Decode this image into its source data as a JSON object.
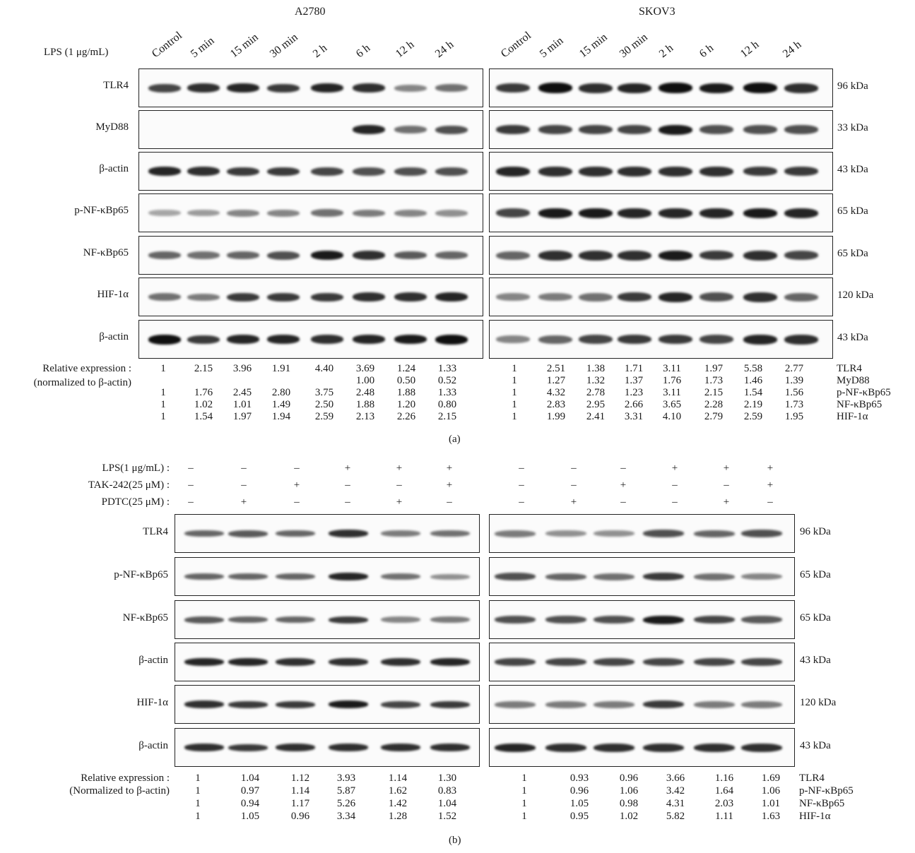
{
  "panel_a": {
    "cell_lines": [
      "A2780",
      "SKOV3"
    ],
    "lps_label": "LPS (1 μg/mL)",
    "timepoints": [
      "Control",
      "5 min",
      "15 min",
      "30 min",
      "2 h",
      "6 h",
      "12 h",
      "24 h"
    ],
    "rows": [
      {
        "name": "TLR4",
        "kda": "96 kDa"
      },
      {
        "name": "MyD88",
        "kda": "33 kDa"
      },
      {
        "name": "β-actin",
        "kda": "43 kDa"
      },
      {
        "name": "p-NF-κBp65",
        "kda": "65 kDa"
      },
      {
        "name": "NF-κBp65",
        "kda": "65 kDa"
      },
      {
        "name": "HIF-1α",
        "kda": "120 kDa"
      },
      {
        "name": "β-actin",
        "kda": "43 kDa"
      }
    ],
    "rel_label_1": "Relative expression :",
    "rel_label_2": "(normalized to β-actin)",
    "a2780_values": [
      [
        "1",
        "2.15",
        "3.96",
        "1.91",
        "4.40",
        "3.69",
        "1.24",
        "1.33"
      ],
      [
        "",
        "",
        "",
        "",
        "",
        "1.00",
        "0.50",
        "0.52"
      ],
      [
        "1",
        "1.76",
        "2.45",
        "2.80",
        "3.75",
        "2.48",
        "1.88",
        "1.33"
      ],
      [
        "1",
        "1.02",
        "1.01",
        "1.49",
        "2.50",
        "1.88",
        "1.20",
        "0.80"
      ],
      [
        "1",
        "1.54",
        "1.97",
        "1.94",
        "2.59",
        "2.13",
        "2.26",
        "2.15"
      ]
    ],
    "skov3_values": [
      [
        "1",
        "2.51",
        "1.38",
        "1.71",
        "3.11",
        "1.97",
        "5.58",
        "2.77"
      ],
      [
        "1",
        "1.27",
        "1.32",
        "1.37",
        "1.76",
        "1.73",
        "1.46",
        "1.39"
      ],
      [
        "1",
        "4.32",
        "2.78",
        "1.23",
        "3.11",
        "2.15",
        "1.54",
        "1.56"
      ],
      [
        "1",
        "2.83",
        "2.95",
        "2.66",
        "3.65",
        "2.28",
        "2.19",
        "1.73"
      ],
      [
        "1",
        "1.99",
        "2.41",
        "3.31",
        "4.10",
        "2.79",
        "2.59",
        "1.95"
      ]
    ],
    "value_row_names": [
      "TLR4",
      "MyD88",
      "p-NF-κBp65",
      "NF-κBp65",
      "HIF-1α"
    ],
    "panel_label": "(a)"
  },
  "panel_b": {
    "treatments": [
      {
        "label": "LPS(1 μg/mL) :",
        "a2780": [
          "–",
          "–",
          "–",
          "+",
          "+",
          "+"
        ],
        "skov3": [
          "–",
          "–",
          "–",
          "+",
          "+",
          "+"
        ]
      },
      {
        "label": "TAK-242(25 μM) :",
        "a2780": [
          "–",
          "–",
          "+",
          "–",
          "–",
          "+"
        ],
        "skov3": [
          "–",
          "–",
          "+",
          "–",
          "–",
          "+"
        ]
      },
      {
        "label": "PDTC(25 μM) :",
        "a2780": [
          "–",
          "+",
          "–",
          "–",
          "+",
          "–"
        ],
        "skov3": [
          "–",
          "+",
          "–",
          "–",
          "+",
          "–"
        ]
      }
    ],
    "rows": [
      {
        "name": "TLR4",
        "kda": "96 kDa"
      },
      {
        "name": "p-NF-κBp65",
        "kda": "65 kDa"
      },
      {
        "name": "NF-κBp65",
        "kda": "65 kDa"
      },
      {
        "name": "β-actin",
        "kda": "43 kDa"
      },
      {
        "name": "HIF-1α",
        "kda": "120 kDa"
      },
      {
        "name": "β-actin",
        "kda": "43 kDa"
      }
    ],
    "rel_label_1": "Relative expression :",
    "rel_label_2": "(Normalized to β-actin)",
    "a2780_values": [
      [
        "1",
        "1.04",
        "1.12",
        "3.93",
        "1.14",
        "1.30"
      ],
      [
        "1",
        "0.97",
        "1.14",
        "5.87",
        "1.62",
        "0.83"
      ],
      [
        "1",
        "0.94",
        "1.17",
        "5.26",
        "1.42",
        "1.04"
      ],
      [
        "1",
        "1.05",
        "0.96",
        "3.34",
        "1.28",
        "1.52"
      ]
    ],
    "skov3_values": [
      [
        "1",
        "0.93",
        "0.96",
        "3.66",
        "1.16",
        "1.69"
      ],
      [
        "1",
        "0.96",
        "1.06",
        "3.42",
        "1.64",
        "1.06"
      ],
      [
        "1",
        "1.05",
        "0.98",
        "4.31",
        "2.03",
        "1.01"
      ],
      [
        "1",
        "0.95",
        "1.02",
        "5.82",
        "1.11",
        "1.63"
      ]
    ],
    "value_row_names": [
      "TLR4",
      "p-NF-κBp65",
      "NF-κBp65",
      "HIF-1α"
    ],
    "panel_label": "(b)"
  }
}
